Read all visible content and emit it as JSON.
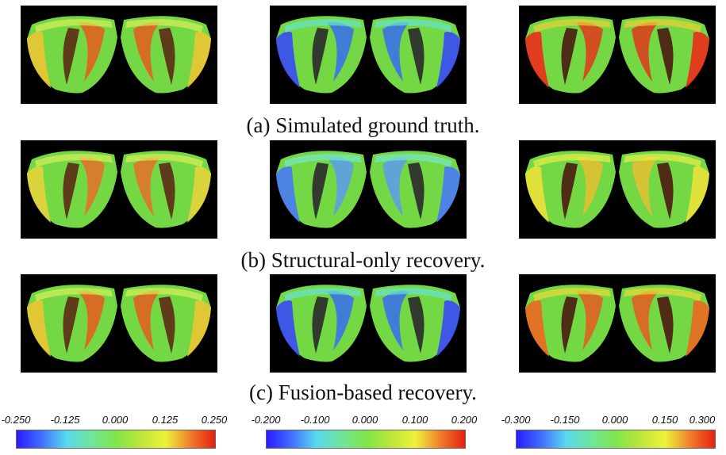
{
  "figure": {
    "rows": [
      {
        "caption": "(a) Simulated ground truth.",
        "panels": [
          {
            "scheme": "warm-yellow"
          },
          {
            "scheme": "cool-blue"
          },
          {
            "scheme": "hot-red"
          }
        ]
      },
      {
        "caption": "(b) Structural-only recovery.",
        "panels": [
          {
            "scheme": "warm-yellow-soft"
          },
          {
            "scheme": "cool-blue-soft"
          },
          {
            "scheme": "yellow-soft"
          }
        ]
      },
      {
        "caption": "(c) Fusion-based recovery.",
        "panels": [
          {
            "scheme": "warm-yellow"
          },
          {
            "scheme": "cool-blue"
          },
          {
            "scheme": "hot-red-soft"
          }
        ]
      }
    ],
    "colorbars": [
      {
        "ticks": [
          "-0.250",
          "-0.125",
          "0.000",
          "0.125",
          "0.250"
        ]
      },
      {
        "ticks": [
          "-0.200",
          "-0.100",
          "0.000",
          "0.100",
          "0.200"
        ]
      },
      {
        "ticks": [
          "-0.300",
          "-0.150",
          "0.000",
          "0.150",
          "0.300"
        ]
      }
    ],
    "colormap": [
      "#2a1aff",
      "#59d9f0",
      "#7fe64b",
      "#eef23a",
      "#e61f10"
    ]
  }
}
